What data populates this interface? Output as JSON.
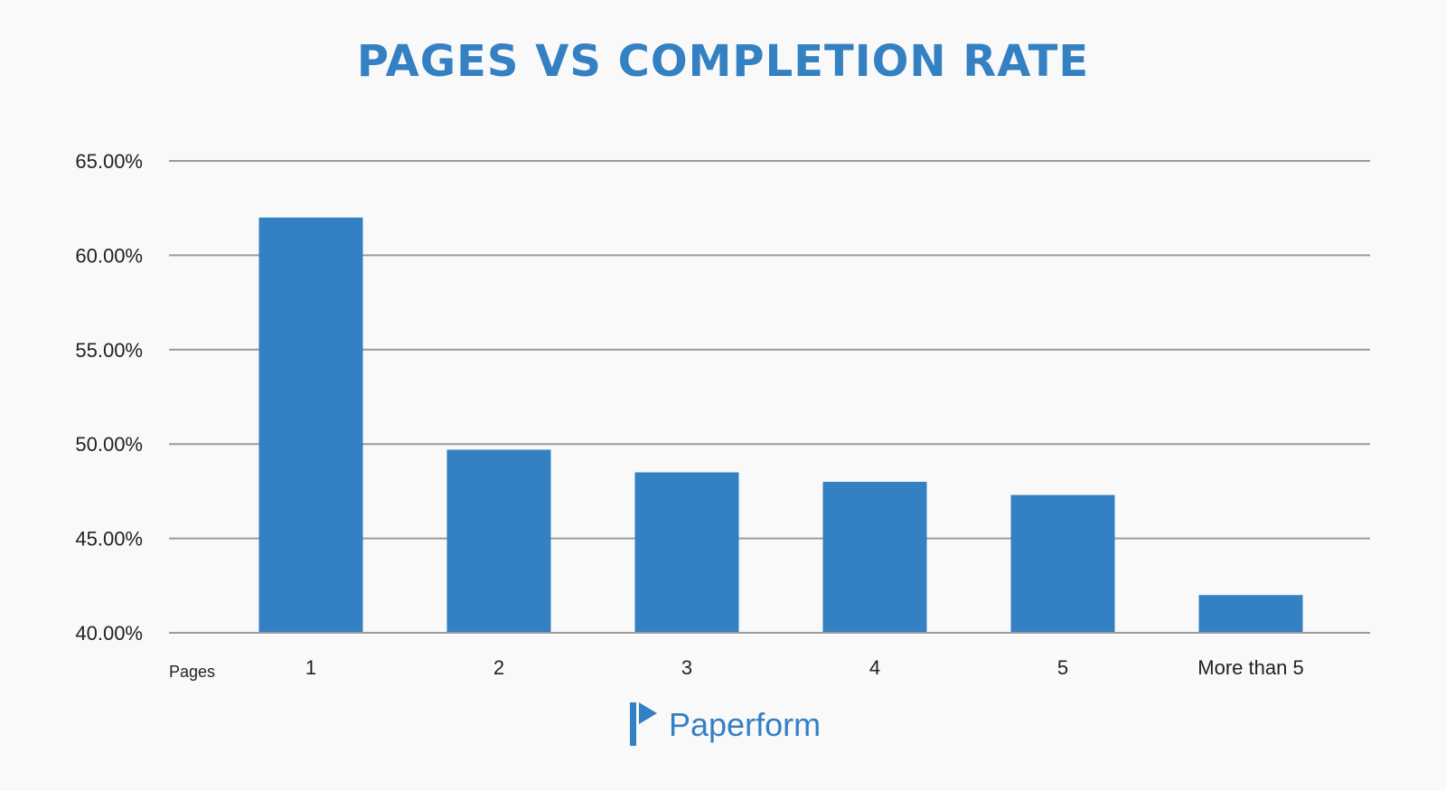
{
  "chart_data": {
    "type": "bar",
    "title": "PAGES VS COMPLETION RATE",
    "xlabel": "Pages",
    "ylabel": "",
    "categories": [
      "1",
      "2",
      "3",
      "4",
      "5",
      "More than 5"
    ],
    "values": [
      62.0,
      49.7,
      48.5,
      48.0,
      47.3,
      42.0
    ],
    "ylim": [
      40,
      65
    ],
    "yticks": [
      65,
      60,
      55,
      50,
      45,
      40
    ],
    "ytick_labels": [
      "65.00%",
      "60.00%",
      "55.00%",
      "50.00%",
      "45.00%",
      "40.00%"
    ],
    "grid": true,
    "legend": "none"
  },
  "colors": {
    "bar": "#3380c2",
    "title": "#3380c2",
    "grid": "#9a9a9a",
    "background": "#f9f9f9"
  },
  "brand": {
    "name": "Paperform",
    "logo_icon": "paperform-logo-icon"
  }
}
